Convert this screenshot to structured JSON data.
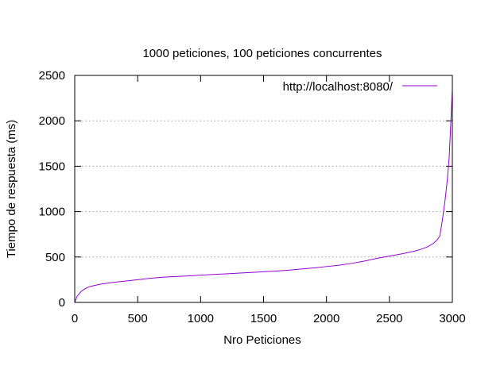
{
  "chart_data": {
    "type": "line",
    "title": "1000 peticiones, 100 peticiones concurrentes",
    "xlabel": "Nro Peticiones",
    "ylabel": "Tiempo de respuesta (ms)",
    "xlim": [
      0,
      3000
    ],
    "ylim": [
      0,
      2500
    ],
    "xticks": [
      0,
      500,
      1000,
      1500,
      2000,
      2500,
      3000
    ],
    "yticks": [
      0,
      500,
      1000,
      1500,
      2000,
      2500
    ],
    "grid": "horizontal-dotted",
    "legend_position": "top-right",
    "series": [
      {
        "name": "http://localhost:8080/",
        "color": "#9400d3",
        "x": [
          0,
          20,
          50,
          80,
          120,
          200,
          300,
          400,
          500,
          600,
          700,
          800,
          900,
          1000,
          1100,
          1200,
          1300,
          1400,
          1500,
          1600,
          1700,
          1800,
          1900,
          2000,
          2100,
          2200,
          2300,
          2400,
          2500,
          2600,
          2700,
          2750,
          2800,
          2850,
          2880,
          2900,
          2920,
          2940,
          2960,
          2975,
          2985,
          2995,
          3000
        ],
        "y": [
          0,
          70,
          120,
          150,
          175,
          200,
          220,
          235,
          250,
          265,
          278,
          285,
          292,
          300,
          308,
          315,
          322,
          330,
          338,
          345,
          355,
          368,
          380,
          395,
          410,
          430,
          455,
          485,
          510,
          535,
          565,
          585,
          610,
          650,
          690,
          730,
          900,
          1100,
          1350,
          1600,
          1900,
          2200,
          2350
        ]
      }
    ]
  }
}
